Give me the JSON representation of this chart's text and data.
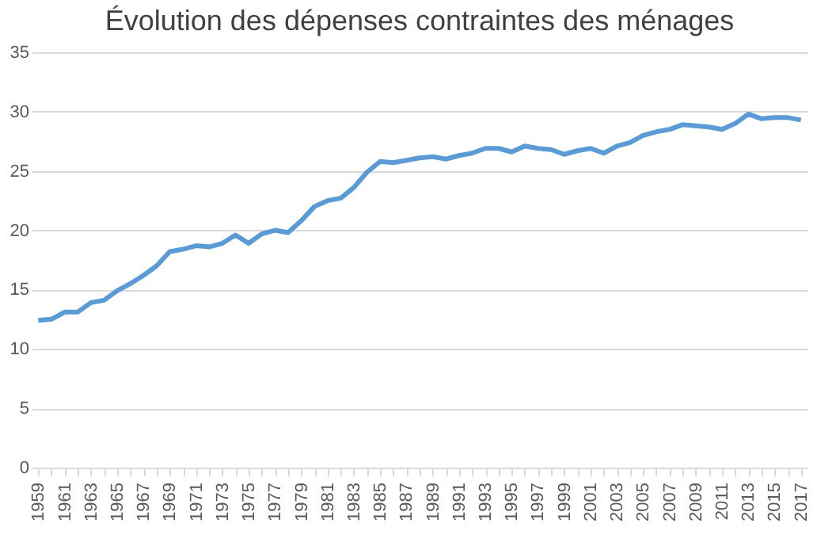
{
  "chart_data": {
    "type": "line",
    "title": "Évolution des dépenses contraintes des ménages",
    "categories": [
      "1959",
      null,
      "1961",
      null,
      "1963",
      null,
      "1965",
      null,
      "1967",
      null,
      "1969",
      null,
      "1971",
      null,
      "1973",
      null,
      "1975",
      null,
      "1977",
      null,
      "1979",
      null,
      "1981",
      null,
      "1983",
      null,
      "1985",
      null,
      "1987",
      null,
      "1989",
      null,
      "1991",
      null,
      "1993",
      null,
      "1995",
      null,
      "1997",
      null,
      "1999",
      null,
      "2001",
      null,
      "2003",
      null,
      "2005",
      null,
      "2007",
      null,
      "2009",
      null,
      "2011",
      null,
      "2013",
      null,
      "2015",
      null,
      "2017"
    ],
    "series": [
      {
        "color": "#5b9bd5",
        "values": [
          12.4,
          12.5,
          13.1,
          13.1,
          13.9,
          14.1,
          14.9,
          15.5,
          16.2,
          17.0,
          18.2,
          18.4,
          18.7,
          18.6,
          18.9,
          19.6,
          18.9,
          19.7,
          20.0,
          19.8,
          20.8,
          22.0,
          22.5,
          22.7,
          23.6,
          24.9,
          25.8,
          25.7,
          25.9,
          26.1,
          26.2,
          26.0,
          26.3,
          26.5,
          26.9,
          26.9,
          26.6,
          27.1,
          26.9,
          26.8,
          26.4,
          26.7,
          26.9,
          26.5,
          27.1,
          27.4,
          28.0,
          28.3,
          28.5,
          28.9,
          28.8,
          28.7,
          28.5,
          29.0,
          29.8,
          29.4,
          29.5,
          29.5,
          29.3
        ]
      }
    ],
    "ylim": [
      0,
      35
    ],
    "yticks": [
      0,
      5,
      10,
      15,
      20,
      25,
      30,
      35
    ],
    "grid": "y",
    "legend": false,
    "marker": "none",
    "line_style": "solid"
  }
}
